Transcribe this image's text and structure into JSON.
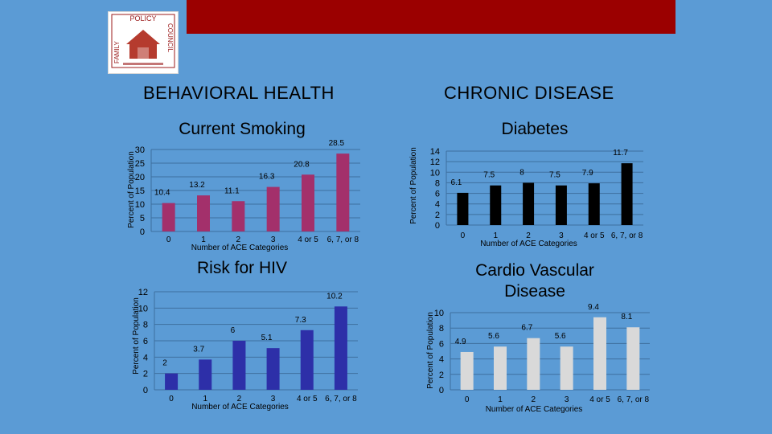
{
  "header": {
    "logo_text_top": "POLICY",
    "logo_text_left": "FAMILY",
    "logo_text_right": "COUNCIL",
    "accent_color": "#9b0000",
    "background_color": "#5b9bd5"
  },
  "sections": {
    "left": "BEHAVIORAL HEALTH",
    "right": "CHRONIC DISEASE"
  },
  "chart_data": [
    {
      "id": "smoking",
      "type": "bar",
      "title": "Current Smoking",
      "xlabel": "Number of ACE Categories",
      "ylabel": "Percent of Population",
      "categories": [
        "0",
        "1",
        "2",
        "3",
        "4 or 5",
        "6, 7, or 8"
      ],
      "values": [
        10.4,
        13.2,
        11.1,
        16.3,
        20.8,
        28.5
      ],
      "ylim": [
        0,
        30
      ],
      "yticks": [
        0,
        5,
        10,
        15,
        20,
        25,
        30
      ],
      "color": "#a3306b",
      "grid": true
    },
    {
      "id": "diabetes",
      "type": "bar",
      "title": "Diabetes",
      "xlabel": "Number of ACE Categories",
      "ylabel": "Percent of Population",
      "categories": [
        "0",
        "1",
        "2",
        "3",
        "4 or 5",
        "6, 7, or 8"
      ],
      "values": [
        6.1,
        7.5,
        8,
        7.5,
        7.9,
        11.7
      ],
      "ylim": [
        0,
        14
      ],
      "yticks": [
        0,
        2,
        4,
        6,
        8,
        10,
        12,
        14
      ],
      "color": "#000000",
      "grid": true
    },
    {
      "id": "hiv",
      "type": "bar",
      "title": "Risk for HIV",
      "xlabel": "Number of ACE Categories",
      "ylabel": "Percent of Population",
      "categories": [
        "0",
        "1",
        "2",
        "3",
        "4 or 5",
        "6, 7, or 8"
      ],
      "values": [
        2,
        3.7,
        6,
        5.1,
        7.3,
        10.2
      ],
      "ylim": [
        0,
        12
      ],
      "yticks": [
        0,
        2,
        4,
        6,
        8,
        10,
        12
      ],
      "color": "#2d2fa8",
      "grid": true
    },
    {
      "id": "cardio",
      "type": "bar",
      "title": "Cardio Vascular Disease",
      "xlabel": "Number of ACE Categories",
      "ylabel": "Percent of Population",
      "categories": [
        "0",
        "1",
        "2",
        "3",
        "4 or 5",
        "6, 7, or 8"
      ],
      "values": [
        4.9,
        5.6,
        6.7,
        5.6,
        9.4,
        8.1
      ],
      "ylim": [
        0,
        10
      ],
      "yticks": [
        0,
        2,
        4,
        6,
        8,
        10
      ],
      "color": "#d9d9d9",
      "grid": true
    }
  ]
}
